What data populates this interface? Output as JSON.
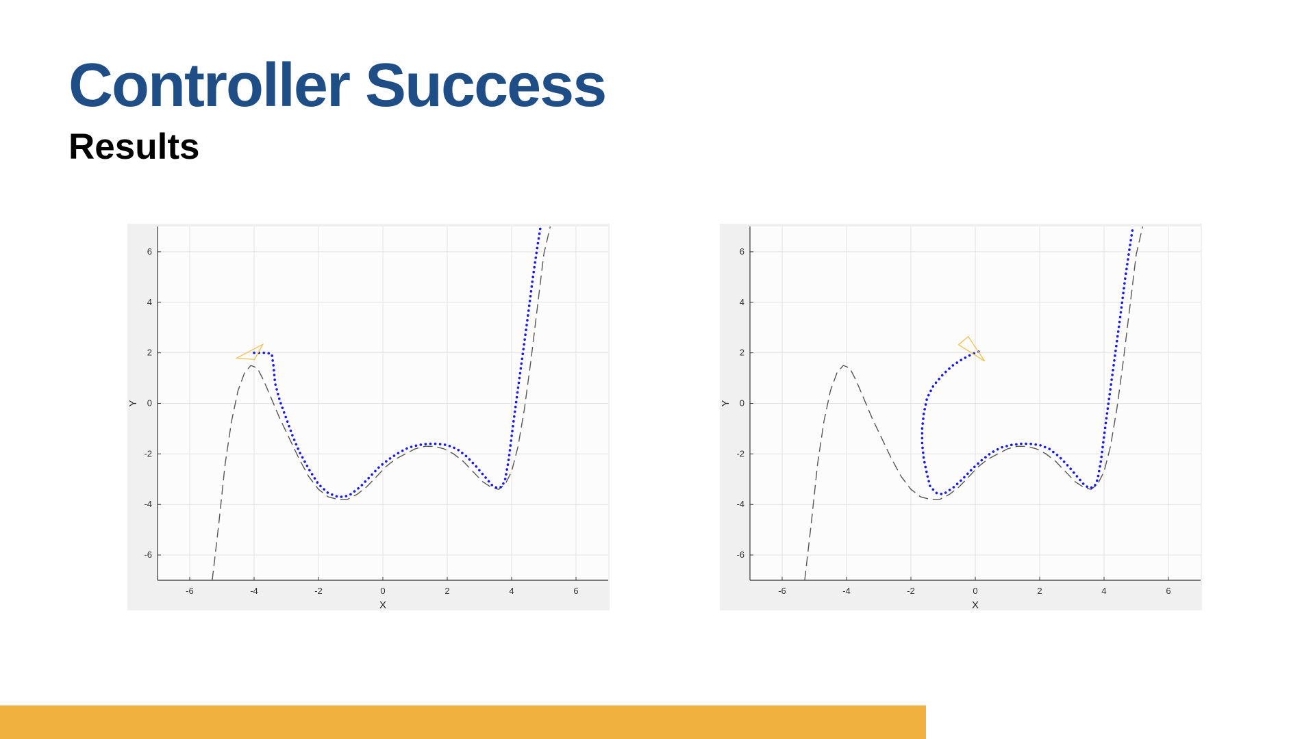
{
  "slide": {
    "title": "Controller Success",
    "subtitle": "Results",
    "title_color": "#1f4e86",
    "accent_bar_color": "#f0b13e"
  },
  "chart_data": [
    {
      "type": "line",
      "title": "",
      "xlabel": "X",
      "ylabel": "Y",
      "xlim": [
        -7,
        7
      ],
      "ylim": [
        -7,
        7
      ],
      "xticks": [
        -6,
        -4,
        -2,
        0,
        2,
        4,
        6
      ],
      "yticks": [
        -6,
        -4,
        -2,
        0,
        2,
        4,
        6
      ],
      "grid": true,
      "series": [
        {
          "style": "dashed",
          "color": "#555555",
          "x": [
            -5.3,
            -5.1,
            -4.9,
            -4.7,
            -4.5,
            -4.3,
            -4.1,
            -3.9,
            -3.7,
            -3.5,
            -3.2,
            -2.9,
            -2.6,
            -2.3,
            -2.0,
            -1.7,
            -1.4,
            -1.1,
            -0.8,
            -0.5,
            -0.2,
            0.1,
            0.4,
            0.7,
            1.0,
            1.3,
            1.6,
            1.9,
            2.2,
            2.5,
            2.8,
            3.1,
            3.4,
            3.6,
            3.8,
            4.0,
            4.2,
            4.4,
            4.6,
            4.8,
            5.0,
            5.2
          ],
          "y": [
            -7.0,
            -4.8,
            -2.4,
            -0.7,
            0.5,
            1.2,
            1.5,
            1.4,
            0.9,
            0.3,
            -0.6,
            -1.4,
            -2.2,
            -2.9,
            -3.4,
            -3.7,
            -3.8,
            -3.8,
            -3.6,
            -3.3,
            -2.9,
            -2.5,
            -2.2,
            -2.0,
            -1.8,
            -1.7,
            -1.7,
            -1.8,
            -2.0,
            -2.3,
            -2.7,
            -3.1,
            -3.35,
            -3.4,
            -3.2,
            -2.7,
            -1.7,
            -0.2,
            1.7,
            3.8,
            5.9,
            7.0
          ]
        },
        {
          "style": "dotted",
          "color": "#1a1ae6",
          "x": [
            -4.0,
            -3.8,
            -3.6,
            -3.45,
            -3.4,
            -3.35,
            -3.2,
            -3.0,
            -2.8,
            -2.6,
            -2.3,
            -2.0,
            -1.7,
            -1.4,
            -1.2,
            -1.0,
            -0.7,
            -0.4,
            -0.1,
            0.2,
            0.5,
            0.8,
            1.1,
            1.4,
            1.7,
            2.0,
            2.3,
            2.6,
            2.9,
            3.2,
            3.4,
            3.55,
            3.7,
            3.8,
            3.9,
            4.05,
            4.2,
            4.35,
            4.5,
            4.65,
            4.8,
            4.9
          ],
          "y": [
            2.0,
            2.0,
            2.0,
            1.95,
            1.5,
            0.8,
            0.1,
            -0.6,
            -1.3,
            -1.9,
            -2.6,
            -3.2,
            -3.55,
            -3.7,
            -3.7,
            -3.6,
            -3.3,
            -2.9,
            -2.5,
            -2.2,
            -1.95,
            -1.75,
            -1.65,
            -1.6,
            -1.6,
            -1.65,
            -1.8,
            -2.1,
            -2.5,
            -2.95,
            -3.25,
            -3.35,
            -3.3,
            -3.0,
            -2.3,
            -0.8,
            0.6,
            2.0,
            3.4,
            4.9,
            6.2,
            7.0
          ]
        }
      ],
      "robot_marker": {
        "x": -4.2,
        "y": 1.9,
        "heading": "right",
        "color": "#f0c050"
      }
    },
    {
      "type": "line",
      "title": "",
      "xlabel": "X",
      "ylabel": "Y",
      "xlim": [
        -7,
        7
      ],
      "ylim": [
        -7,
        7
      ],
      "xticks": [
        -6,
        -4,
        -2,
        0,
        2,
        4,
        6
      ],
      "yticks": [
        -6,
        -4,
        -2,
        0,
        2,
        4,
        6
      ],
      "grid": true,
      "series": [
        {
          "style": "dashed",
          "color": "#555555",
          "x": [
            -5.3,
            -5.1,
            -4.9,
            -4.7,
            -4.5,
            -4.3,
            -4.1,
            -3.9,
            -3.7,
            -3.5,
            -3.2,
            -2.9,
            -2.6,
            -2.3,
            -2.0,
            -1.7,
            -1.4,
            -1.1,
            -0.8,
            -0.5,
            -0.2,
            0.1,
            0.4,
            0.7,
            1.0,
            1.3,
            1.6,
            1.9,
            2.2,
            2.5,
            2.8,
            3.1,
            3.4,
            3.6,
            3.8,
            4.0,
            4.2,
            4.4,
            4.6,
            4.8,
            5.0,
            5.2
          ],
          "y": [
            -7.0,
            -4.8,
            -2.4,
            -0.7,
            0.5,
            1.2,
            1.5,
            1.4,
            0.9,
            0.3,
            -0.6,
            -1.4,
            -2.2,
            -2.9,
            -3.4,
            -3.7,
            -3.8,
            -3.8,
            -3.6,
            -3.3,
            -2.9,
            -2.5,
            -2.2,
            -2.0,
            -1.8,
            -1.7,
            -1.7,
            -1.8,
            -2.0,
            -2.3,
            -2.7,
            -3.1,
            -3.35,
            -3.4,
            -3.2,
            -2.7,
            -1.7,
            -0.2,
            1.7,
            3.8,
            5.9,
            7.0
          ]
        },
        {
          "style": "dotted",
          "color": "#1a1ae6",
          "x": [
            0.1,
            -0.1,
            -0.4,
            -0.7,
            -1.0,
            -1.3,
            -1.5,
            -1.6,
            -1.65,
            -1.65,
            -1.6,
            -1.5,
            -1.4,
            -1.2,
            -1.0,
            -0.7,
            -0.4,
            -0.1,
            0.2,
            0.5,
            0.8,
            1.1,
            1.4,
            1.7,
            2.0,
            2.3,
            2.6,
            2.9,
            3.2,
            3.4,
            3.55,
            3.7,
            3.8,
            3.9,
            4.05,
            4.2,
            4.35,
            4.5,
            4.65,
            4.8,
            4.9
          ],
          "y": [
            2.05,
            1.95,
            1.75,
            1.5,
            1.15,
            0.7,
            0.2,
            -0.4,
            -1.0,
            -1.6,
            -2.2,
            -2.8,
            -3.3,
            -3.55,
            -3.6,
            -3.35,
            -3.0,
            -2.6,
            -2.25,
            -1.95,
            -1.75,
            -1.65,
            -1.6,
            -1.6,
            -1.65,
            -1.8,
            -2.1,
            -2.5,
            -2.95,
            -3.25,
            -3.35,
            -3.3,
            -3.0,
            -2.3,
            -0.8,
            0.6,
            2.0,
            3.4,
            4.9,
            6.2,
            7.0
          ]
        }
      ],
      "robot_marker": {
        "x": -0.05,
        "y": 2.05,
        "heading": "down-right",
        "color": "#f0c050"
      }
    }
  ]
}
